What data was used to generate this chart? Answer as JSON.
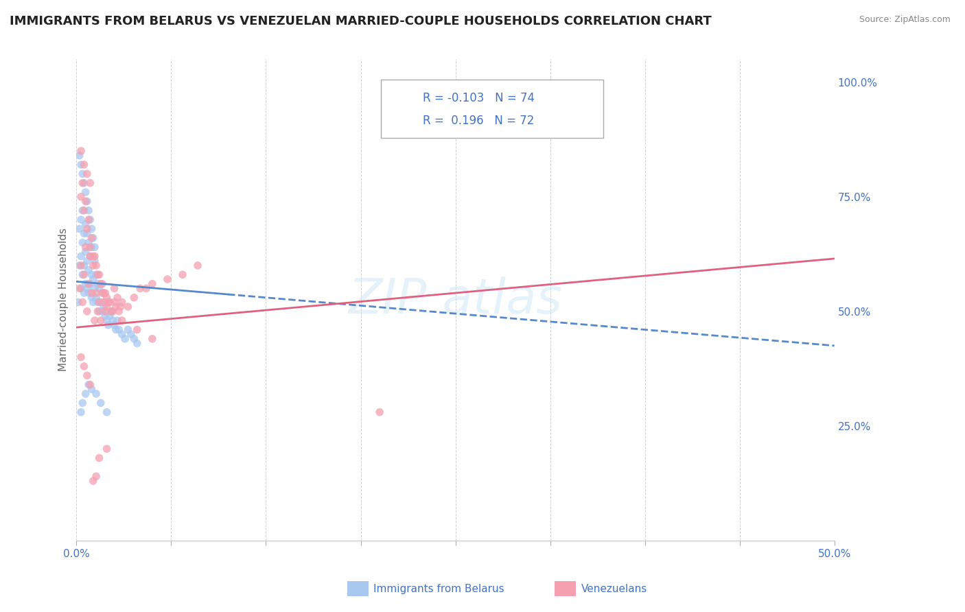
{
  "title": "IMMIGRANTS FROM BELARUS VS VENEZUELAN MARRIED-COUPLE HOUSEHOLDS CORRELATION CHART",
  "source": "Source: ZipAtlas.com",
  "ylabel": "Married-couple Households",
  "xlim": [
    0.0,
    0.5
  ],
  "ylim": [
    0.0,
    1.05
  ],
  "color_belarus": "#a8c8f0",
  "color_venezuela": "#f4a0b0",
  "color_trend_belarus": "#5588cc",
  "color_trend_venezuela": "#e06080",
  "color_text": "#4472c4",
  "background": "#ffffff",
  "belarus_intercept": 0.565,
  "belarus_slope": -0.28,
  "venezuela_intercept": 0.465,
  "venezuela_slope": 0.3,
  "belarus_x": [
    0.001,
    0.002,
    0.002,
    0.003,
    0.003,
    0.003,
    0.004,
    0.004,
    0.004,
    0.005,
    0.005,
    0.005,
    0.006,
    0.006,
    0.006,
    0.007,
    0.007,
    0.007,
    0.008,
    0.008,
    0.008,
    0.009,
    0.009,
    0.01,
    0.01,
    0.01,
    0.011,
    0.011,
    0.012,
    0.012,
    0.013,
    0.013,
    0.014,
    0.014,
    0.015,
    0.015,
    0.016,
    0.017,
    0.018,
    0.019,
    0.02,
    0.021,
    0.022,
    0.023,
    0.024,
    0.025,
    0.026,
    0.027,
    0.028,
    0.03,
    0.032,
    0.034,
    0.036,
    0.038,
    0.04,
    0.002,
    0.003,
    0.004,
    0.005,
    0.006,
    0.007,
    0.008,
    0.009,
    0.01,
    0.011,
    0.012,
    0.003,
    0.004,
    0.006,
    0.008,
    0.01,
    0.013,
    0.016,
    0.02
  ],
  "belarus_y": [
    0.52,
    0.6,
    0.68,
    0.55,
    0.62,
    0.7,
    0.58,
    0.65,
    0.72,
    0.54,
    0.6,
    0.67,
    0.56,
    0.63,
    0.69,
    0.55,
    0.61,
    0.67,
    0.54,
    0.59,
    0.65,
    0.56,
    0.62,
    0.53,
    0.58,
    0.64,
    0.52,
    0.57,
    0.55,
    0.61,
    0.53,
    0.58,
    0.52,
    0.56,
    0.5,
    0.55,
    0.52,
    0.5,
    0.51,
    0.49,
    0.48,
    0.47,
    0.49,
    0.5,
    0.48,
    0.47,
    0.46,
    0.48,
    0.46,
    0.45,
    0.44,
    0.46,
    0.45,
    0.44,
    0.43,
    0.84,
    0.82,
    0.8,
    0.78,
    0.76,
    0.74,
    0.72,
    0.7,
    0.68,
    0.66,
    0.64,
    0.28,
    0.3,
    0.32,
    0.34,
    0.33,
    0.32,
    0.3,
    0.28
  ],
  "venezuela_x": [
    0.002,
    0.003,
    0.004,
    0.005,
    0.006,
    0.007,
    0.008,
    0.009,
    0.01,
    0.011,
    0.012,
    0.013,
    0.014,
    0.015,
    0.016,
    0.017,
    0.018,
    0.019,
    0.02,
    0.022,
    0.024,
    0.026,
    0.028,
    0.03,
    0.034,
    0.038,
    0.042,
    0.046,
    0.05,
    0.06,
    0.07,
    0.08,
    0.003,
    0.005,
    0.007,
    0.009,
    0.011,
    0.013,
    0.015,
    0.017,
    0.019,
    0.021,
    0.023,
    0.025,
    0.027,
    0.029,
    0.004,
    0.006,
    0.008,
    0.01,
    0.012,
    0.014,
    0.016,
    0.018,
    0.02,
    0.025,
    0.03,
    0.04,
    0.05,
    0.2,
    0.003,
    0.005,
    0.007,
    0.009,
    0.011,
    0.013,
    0.003,
    0.005,
    0.007,
    0.009,
    0.015,
    0.02
  ],
  "venezuela_y": [
    0.55,
    0.6,
    0.52,
    0.58,
    0.64,
    0.5,
    0.56,
    0.62,
    0.54,
    0.6,
    0.48,
    0.54,
    0.5,
    0.52,
    0.48,
    0.54,
    0.52,
    0.5,
    0.51,
    0.52,
    0.5,
    0.51,
    0.5,
    0.52,
    0.51,
    0.53,
    0.55,
    0.55,
    0.56,
    0.57,
    0.58,
    0.6,
    0.75,
    0.72,
    0.68,
    0.64,
    0.62,
    0.6,
    0.58,
    0.56,
    0.54,
    0.52,
    0.5,
    0.55,
    0.53,
    0.51,
    0.78,
    0.74,
    0.7,
    0.66,
    0.62,
    0.58,
    0.56,
    0.54,
    0.53,
    0.52,
    0.48,
    0.46,
    0.44,
    0.28,
    0.4,
    0.38,
    0.36,
    0.34,
    0.13,
    0.14,
    0.85,
    0.82,
    0.8,
    0.78,
    0.18,
    0.2
  ]
}
